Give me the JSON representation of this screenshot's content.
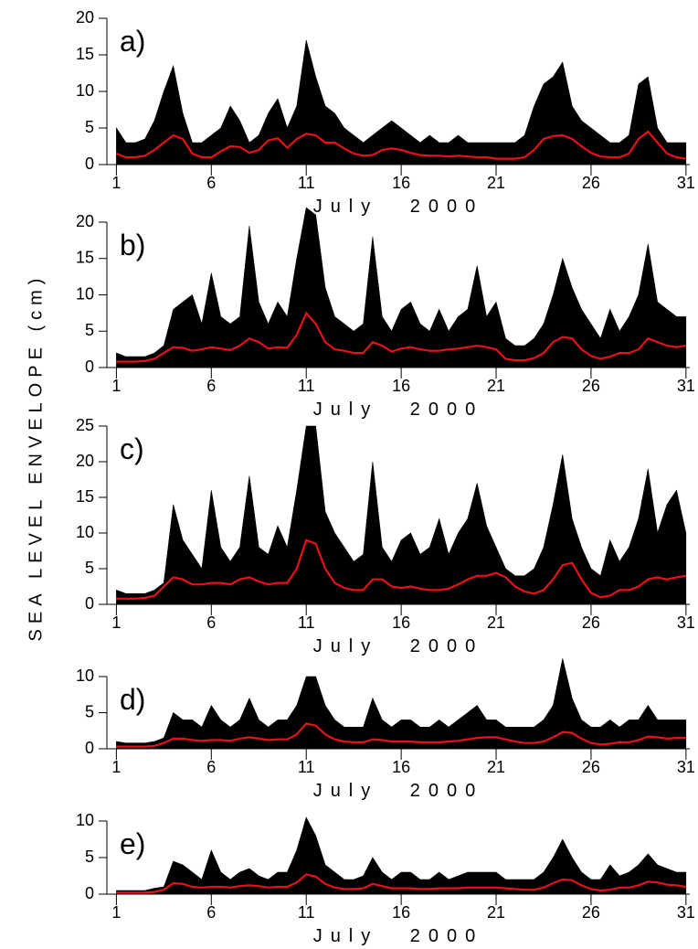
{
  "ylabel": "SEA LEVEL ENVELOPE (cm)",
  "chart_data": [
    {
      "type": "line",
      "label": "a)",
      "xlabel": "July 2000",
      "xlim": [
        0.5,
        31.2
      ],
      "xticks": [
        1,
        6,
        11,
        16,
        21,
        26,
        31
      ],
      "ylim": [
        0,
        20
      ],
      "yticks": [
        0,
        5,
        10,
        15,
        20
      ],
      "x": [
        1,
        1.5,
        2,
        2.5,
        3,
        3.5,
        4,
        4.5,
        5,
        5.5,
        6,
        6.5,
        7,
        7.5,
        8,
        8.5,
        9,
        9.5,
        10,
        10.5,
        11,
        11.5,
        12,
        12.5,
        13,
        13.5,
        14,
        14.5,
        15,
        15.5,
        16,
        16.5,
        17,
        17.5,
        18,
        18.5,
        19,
        19.5,
        20,
        20.5,
        21,
        21.5,
        22,
        22.5,
        23,
        23.5,
        24,
        24.5,
        25,
        25.5,
        26,
        26.5,
        27,
        27.5,
        28,
        28.5,
        29,
        29.5,
        30,
        30.5,
        31
      ],
      "series": [
        {
          "style": "area",
          "color": "#000000",
          "values": [
            5,
            3,
            3,
            3.5,
            6,
            10,
            13.5,
            7,
            3,
            3,
            4,
            5,
            8,
            6,
            3,
            4,
            7,
            9,
            5,
            8,
            17,
            12,
            8,
            7,
            5,
            4,
            3,
            4,
            5,
            6,
            5,
            4,
            3,
            4,
            3,
            3,
            4,
            3,
            3,
            3,
            3,
            3,
            3,
            4,
            8,
            11,
            12,
            14,
            8,
            6,
            5,
            4,
            3,
            3,
            4,
            11,
            12,
            5,
            3,
            3,
            3
          ]
        },
        {
          "style": "line",
          "color": "#e8101a",
          "values": [
            1.5,
            1,
            1,
            1.2,
            2,
            3,
            4,
            3.5,
            1.5,
            1,
            1,
            1.8,
            2.5,
            2.4,
            1.6,
            2,
            3.3,
            3.6,
            2.3,
            3.5,
            4.2,
            4,
            3,
            3,
            2.2,
            1.5,
            1.2,
            1.3,
            2,
            2.2,
            2,
            1.6,
            1.3,
            1.2,
            1.2,
            1.1,
            1.2,
            1.1,
            1,
            1,
            0.8,
            0.8,
            0.8,
            1,
            2,
            3.5,
            3.9,
            4,
            3.5,
            2.5,
            1.6,
            1.1,
            1,
            1,
            1.5,
            3.5,
            4.5,
            3,
            1.5,
            1,
            0.8
          ]
        }
      ]
    },
    {
      "type": "line",
      "label": "b)",
      "xlabel": "July 2000",
      "xlim": [
        0.5,
        31.2
      ],
      "xticks": [
        1,
        6,
        11,
        16,
        21,
        26,
        31
      ],
      "ylim": [
        0,
        20
      ],
      "yticks": [
        0,
        5,
        10,
        15,
        20
      ],
      "x": [
        1,
        1.5,
        2,
        2.5,
        3,
        3.5,
        4,
        4.5,
        5,
        5.5,
        6,
        6.5,
        7,
        7.5,
        8,
        8.5,
        9,
        9.5,
        10,
        10.5,
        11,
        11.5,
        12,
        12.5,
        13,
        13.5,
        14,
        14.5,
        15,
        15.5,
        16,
        16.5,
        17,
        17.5,
        18,
        18.5,
        19,
        19.5,
        20,
        20.5,
        21,
        21.5,
        22,
        22.5,
        23,
        23.5,
        24,
        24.5,
        25,
        25.5,
        26,
        26.5,
        27,
        27.5,
        28,
        28.5,
        29,
        29.5,
        30,
        30.5,
        31
      ],
      "series": [
        {
          "style": "area",
          "color": "#000000",
          "values": [
            2,
            1.5,
            1.5,
            1.5,
            2,
            3,
            8,
            9,
            10,
            6,
            13,
            7,
            6,
            7,
            19.5,
            9,
            6,
            9,
            7,
            15,
            22,
            21,
            11,
            7,
            6,
            5,
            6,
            18,
            7,
            5,
            8,
            9,
            6,
            5,
            8,
            5,
            7,
            8,
            14,
            7,
            9,
            4,
            3,
            3,
            4,
            6,
            10,
            15,
            11,
            8,
            6,
            4,
            8,
            5,
            7,
            10,
            17,
            9,
            8,
            7,
            7
          ]
        },
        {
          "style": "line",
          "color": "#e8101a",
          "values": [
            0.8,
            0.8,
            0.8,
            0.9,
            1.2,
            2,
            2.8,
            2.7,
            2.3,
            2.5,
            2.8,
            2.6,
            2.4,
            3,
            4,
            3.5,
            2.6,
            2.8,
            2.7,
            4.5,
            7.5,
            6,
            3.5,
            2.5,
            2.3,
            2,
            2,
            3.5,
            3,
            2.2,
            2.6,
            2.8,
            2.5,
            2.3,
            2.3,
            2.5,
            2.6,
            2.8,
            3,
            2.8,
            2.5,
            1.2,
            1,
            1,
            1.3,
            2,
            3.5,
            4.2,
            4,
            2.5,
            1.6,
            1.2,
            1.5,
            2,
            2,
            2.5,
            4,
            3.5,
            3,
            2.8,
            3
          ]
        }
      ]
    },
    {
      "type": "line",
      "label": "c)",
      "xlabel": "July 2000",
      "xlim": [
        0.5,
        31.2
      ],
      "xticks": [
        1,
        6,
        11,
        16,
        21,
        26,
        31
      ],
      "ylim": [
        0,
        25
      ],
      "yticks": [
        0,
        5,
        10,
        15,
        20,
        25
      ],
      "x": [
        1,
        1.5,
        2,
        2.5,
        3,
        3.5,
        4,
        4.5,
        5,
        5.5,
        6,
        6.5,
        7,
        7.5,
        8,
        8.5,
        9,
        9.5,
        10,
        10.5,
        11,
        11.5,
        12,
        12.5,
        13,
        13.5,
        14,
        14.5,
        15,
        15.5,
        16,
        16.5,
        17,
        17.5,
        18,
        18.5,
        19,
        19.5,
        20,
        20.5,
        21,
        21.5,
        22,
        22.5,
        23,
        23.5,
        24,
        24.5,
        25,
        25.5,
        26,
        26.5,
        27,
        27.5,
        28,
        28.5,
        29,
        29.5,
        30,
        30.5,
        31
      ],
      "series": [
        {
          "style": "area",
          "color": "#000000",
          "values": [
            2,
            1.5,
            1.5,
            1.5,
            2,
            3,
            14,
            9,
            7,
            5,
            16,
            8,
            6,
            8,
            18,
            8,
            7,
            11,
            8,
            16,
            25,
            25,
            13,
            10,
            8,
            6,
            7,
            20,
            8,
            6,
            9,
            10,
            7,
            8,
            12,
            7,
            10,
            12,
            17,
            11,
            8,
            5,
            4,
            4,
            5,
            8,
            14,
            21,
            12,
            8,
            5,
            4,
            9,
            6,
            8,
            12,
            19,
            10,
            14,
            16,
            10
          ]
        },
        {
          "style": "line",
          "color": "#e8101a",
          "values": [
            0.8,
            0.8,
            0.8,
            0.9,
            1.2,
            2.5,
            3.8,
            3.5,
            2.8,
            2.8,
            3,
            3,
            2.8,
            3.5,
            3.8,
            3.2,
            2.8,
            3,
            3,
            5,
            9,
            8.5,
            5,
            3,
            2.3,
            2,
            2,
            3.5,
            3.5,
            2.5,
            2.3,
            2.5,
            2.2,
            2,
            2,
            2.2,
            2.8,
            3.5,
            4,
            4,
            4.4,
            3.8,
            2.5,
            1.8,
            1.5,
            2,
            3.5,
            5.5,
            5.8,
            3.5,
            1.6,
            1,
            1.2,
            2,
            2,
            2.5,
            3.5,
            3.8,
            3.5,
            3.8,
            4
          ]
        }
      ]
    },
    {
      "type": "line",
      "label": "d)",
      "xlabel": "July 2000",
      "xlim": [
        0.5,
        31.2
      ],
      "xticks": [
        1,
        6,
        11,
        16,
        21,
        26,
        31
      ],
      "ylim": [
        0,
        10
      ],
      "yticks": [
        0,
        5,
        10
      ],
      "x": [
        1,
        1.5,
        2,
        2.5,
        3,
        3.5,
        4,
        4.5,
        5,
        5.5,
        6,
        6.5,
        7,
        7.5,
        8,
        8.5,
        9,
        9.5,
        10,
        10.5,
        11,
        11.5,
        12,
        12.5,
        13,
        13.5,
        14,
        14.5,
        15,
        15.5,
        16,
        16.5,
        17,
        17.5,
        18,
        18.5,
        19,
        19.5,
        20,
        20.5,
        21,
        21.5,
        22,
        22.5,
        23,
        23.5,
        24,
        24.5,
        25,
        25.5,
        26,
        26.5,
        27,
        27.5,
        28,
        28.5,
        29,
        29.5,
        30,
        30.5,
        31
      ],
      "series": [
        {
          "style": "area",
          "color": "#000000",
          "values": [
            1,
            0.8,
            0.8,
            0.8,
            1,
            1.5,
            5,
            4,
            4,
            3,
            6,
            4,
            3,
            4,
            7,
            4,
            3,
            4,
            4,
            6,
            10,
            10,
            6,
            4,
            3,
            3,
            3,
            7,
            4,
            3,
            4,
            4,
            3,
            3,
            4,
            3,
            4,
            5,
            6,
            4,
            4,
            3,
            3,
            3,
            3,
            4,
            6,
            12.5,
            7,
            4,
            3,
            3,
            4,
            3,
            4,
            4,
            6,
            4,
            4,
            4,
            4
          ]
        },
        {
          "style": "line",
          "color": "#e8101a",
          "values": [
            0.3,
            0.3,
            0.3,
            0.3,
            0.4,
            0.8,
            1.4,
            1.4,
            1.2,
            1.1,
            1.2,
            1.2,
            1.1,
            1.4,
            1.6,
            1.4,
            1.2,
            1.3,
            1.3,
            2,
            3.5,
            3.2,
            2,
            1.3,
            1,
            0.9,
            0.9,
            1.3,
            1.2,
            1,
            1,
            1,
            0.9,
            0.9,
            0.9,
            1,
            1.1,
            1.3,
            1.5,
            1.6,
            1.6,
            1.3,
            1,
            0.8,
            0.8,
            1,
            1.6,
            2.3,
            2.2,
            1.4,
            0.8,
            0.6,
            0.7,
            0.9,
            0.9,
            1.2,
            1.7,
            1.6,
            1.4,
            1.5,
            1.5
          ]
        }
      ]
    },
    {
      "type": "line",
      "label": "e)",
      "xlabel": "July 2000",
      "xlim": [
        0.5,
        31.2
      ],
      "xticks": [
        1,
        6,
        11,
        16,
        21,
        26,
        31
      ],
      "ylim": [
        0,
        10
      ],
      "yticks": [
        0,
        5,
        10
      ],
      "x": [
        1,
        1.5,
        2,
        2.5,
        3,
        3.5,
        4,
        4.5,
        5,
        5.5,
        6,
        6.5,
        7,
        7.5,
        8,
        8.5,
        9,
        9.5,
        10,
        10.5,
        11,
        11.5,
        12,
        12.5,
        13,
        13.5,
        14,
        14.5,
        15,
        15.5,
        16,
        16.5,
        17,
        17.5,
        18,
        18.5,
        19,
        19.5,
        20,
        20.5,
        21,
        21.5,
        22,
        22.5,
        23,
        23.5,
        24,
        24.5,
        25,
        25.5,
        26,
        26.5,
        27,
        27.5,
        28,
        28.5,
        29,
        29.5,
        30,
        30.5,
        31
      ],
      "series": [
        {
          "style": "area",
          "color": "#000000",
          "values": [
            0.5,
            0.5,
            0.5,
            0.5,
            0.8,
            1,
            4.5,
            4,
            3,
            2,
            6,
            3,
            2,
            3,
            3.5,
            2.5,
            2,
            3,
            3,
            6,
            10.5,
            8,
            4,
            3,
            2,
            2,
            2.5,
            5,
            3,
            2,
            3,
            3,
            2,
            2,
            3,
            2,
            2.5,
            3,
            3,
            3,
            3,
            2,
            2,
            2,
            2,
            3,
            5,
            7.5,
            5,
            3,
            2,
            2,
            4,
            2.5,
            3,
            4,
            5.5,
            4,
            3.5,
            3,
            3
          ]
        },
        {
          "style": "line",
          "color": "#e8101a",
          "values": [
            0.2,
            0.2,
            0.2,
            0.2,
            0.3,
            0.6,
            1.5,
            1.4,
            1,
            0.9,
            1,
            1,
            0.9,
            1.1,
            1.2,
            1.1,
            0.9,
            1,
            1,
            1.6,
            2.7,
            2.4,
            1.4,
            0.9,
            0.7,
            0.7,
            0.8,
            1.4,
            1.1,
            0.8,
            0.8,
            0.8,
            0.7,
            0.7,
            0.8,
            0.8,
            0.8,
            0.9,
            0.9,
            0.9,
            0.9,
            0.8,
            0.7,
            0.6,
            0.6,
            0.9,
            1.5,
            2,
            1.9,
            1.2,
            0.7,
            0.5,
            0.6,
            0.9,
            0.9,
            1.2,
            1.7,
            1.6,
            1.3,
            1.2,
            1
          ]
        }
      ]
    }
  ]
}
